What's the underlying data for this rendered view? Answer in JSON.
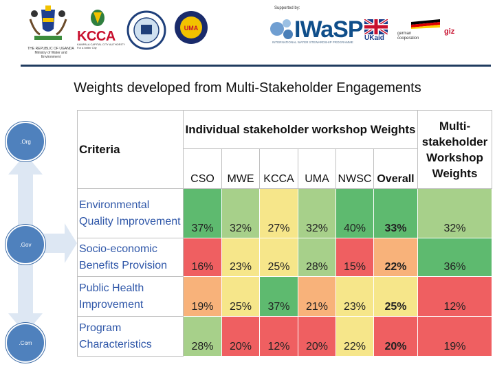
{
  "header": {
    "coat_text": "THE REPUBLIC OF UGANDA\nMinistry of Water and\nEnvironment",
    "kcca": "KCCA",
    "kcca_sub": "KAMPALA CAPITAL CITY AUTHORITY\nFor a better City",
    "uma": "UMA",
    "supported_by": "Supported by:",
    "iwasp": "IWaSP",
    "iwasp_sub": "INTERNATIONAL WATER STEWARDSHIP PROGRAMME",
    "ukaid": "UKaid",
    "german": "german\ncooperation",
    "giz": "giz"
  },
  "title": "Weights developed from Multi-Stakeholder Engagements",
  "diagram": {
    "top": ".Org",
    "middle": ".Gov",
    "bottom": ".Com"
  },
  "table": {
    "criteria_header": "Criteria",
    "group_header": "Individual stakeholder workshop Weights",
    "multi_header": "Multi-stakeholder Workshop Weights",
    "columns": [
      "CSO",
      "MWE",
      "KCCA",
      "UMA",
      "NWSC",
      "Overall"
    ],
    "rows": [
      {
        "criterion": "Environmental Quality Improvement",
        "values": [
          "37%",
          "32%",
          "27%",
          "32%",
          "40%",
          "33%"
        ],
        "multi": "32%"
      },
      {
        "criterion": "Socio-economic Benefits Provision",
        "values": [
          "16%",
          "23%",
          "25%",
          "28%",
          "15%",
          "22%"
        ],
        "multi": "36%"
      },
      {
        "criterion": "Public Health Improvement",
        "values": [
          "19%",
          "25%",
          "37%",
          "21%",
          "23%",
          "25%"
        ],
        "multi": "12%"
      },
      {
        "criterion": "Program Characteristics",
        "values": [
          "28%",
          "20%",
          "12%",
          "20%",
          "22%",
          "20%"
        ],
        "multi": "19%"
      }
    ]
  },
  "colors": {
    "green": "#5eba6f",
    "lightgreen": "#a7d08a",
    "yellow": "#f6e68a",
    "orange": "#f8b27a",
    "red": "#ef5f61",
    "blue_circle": "#4f81bd",
    "arrow": "#dde7f3"
  }
}
